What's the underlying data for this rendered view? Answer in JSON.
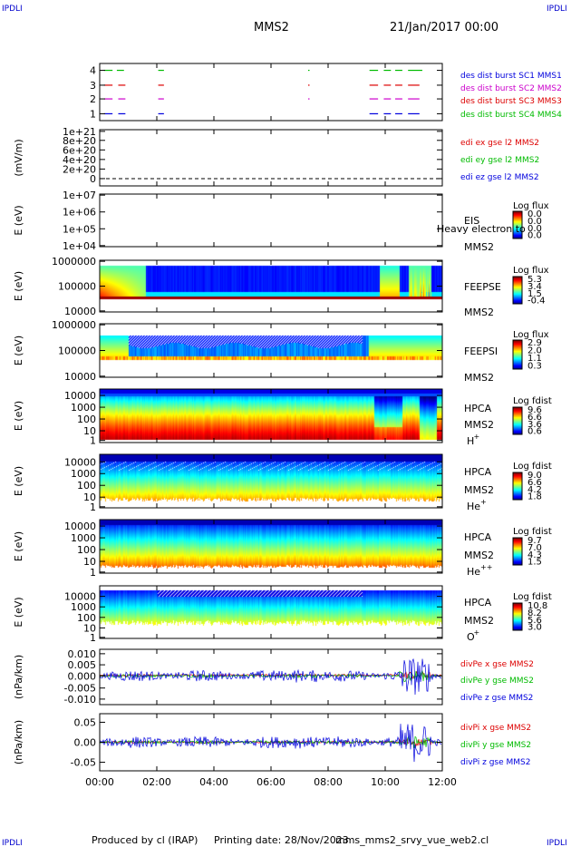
{
  "header": {
    "corner_label": "IPDLI",
    "title": "MMS2",
    "datetime": "21/Jan/2017 00:00"
  },
  "footer": {
    "produced_by": "Produced by cl (IRAP)",
    "printing_date": "Printing date: 28/Nov/2023",
    "source": "mms_mms2_srvy_vue_web2.cl"
  },
  "colors": {
    "blue": "#0000dd",
    "red": "#dd0000",
    "green": "#00bb00",
    "magenta": "#cc00cc"
  },
  "chart_data": [
    {
      "type": "line",
      "panel": "burst",
      "yticks": [
        "1",
        "2",
        "3",
        "4"
      ],
      "legend": [
        {
          "text": "des dist burst SC1 MMS1",
          "color": "#0000dd"
        },
        {
          "text": "des dist burst SC2 MMS2",
          "color": "#cc00cc"
        },
        {
          "text": "des dist burst SC3 MMS3",
          "color": "#dd0000"
        },
        {
          "text": "des dist burst SC4 MMS4",
          "color": "#00bb00"
        }
      ],
      "series": [
        {
          "level": 4,
          "color": "#00bb00",
          "segments": [
            [
              0.15,
              0.45
            ],
            [
              0.6,
              0.85
            ],
            [
              2.05,
              2.25
            ],
            [
              7.3,
              7.35
            ],
            [
              9.45,
              9.75
            ],
            [
              9.95,
              10.2
            ],
            [
              10.35,
              10.6
            ],
            [
              10.8,
              11.3
            ]
          ]
        },
        {
          "level": 3,
          "color": "#dd0000",
          "segments": [
            [
              0.15,
              0.45
            ],
            [
              0.65,
              0.9
            ],
            [
              2.05,
              2.25
            ],
            [
              7.3,
              7.35
            ],
            [
              9.45,
              9.75
            ],
            [
              9.95,
              10.2
            ],
            [
              10.35,
              10.6
            ],
            [
              10.8,
              11.2
            ]
          ]
        },
        {
          "level": 2,
          "color": "#cc00cc",
          "segments": [
            [
              0.15,
              0.45
            ],
            [
              0.65,
              0.9
            ],
            [
              2.05,
              2.25
            ],
            [
              7.3,
              7.35
            ],
            [
              9.45,
              9.75
            ],
            [
              9.95,
              10.2
            ],
            [
              10.35,
              10.6
            ],
            [
              10.8,
              11.2
            ]
          ]
        },
        {
          "level": 1,
          "color": "#0000dd",
          "segments": [
            [
              0.15,
              0.45
            ],
            [
              0.65,
              0.9
            ],
            [
              2.05,
              2.25
            ],
            [
              9.45,
              9.75
            ],
            [
              9.95,
              10.2
            ],
            [
              10.35,
              10.6
            ],
            [
              10.8,
              11.2
            ]
          ]
        }
      ]
    },
    {
      "type": "line",
      "panel": "edi",
      "ylabel": "(mV/m)",
      "yticks": [
        "0",
        "2e+20",
        "4e+20",
        "6e+20",
        "8e+20",
        "1e+21"
      ],
      "legend": [
        {
          "text": "edi ex gse l2 MMS2",
          "color": "#dd0000"
        },
        {
          "text": "edi ey gse l2 MMS2",
          "color": "#00bb00"
        },
        {
          "text": "edi ez gse l2 MMS2",
          "color": "#0000dd"
        }
      ]
    },
    {
      "type": "heatmap",
      "panel": "eis",
      "ylabel": "E (eV)",
      "yticks": [
        "1e+04",
        "1e+05",
        "1e+06",
        "1e+07"
      ],
      "instrument": "EIS",
      "spacecraft": "MMS2",
      "overlay": "Heavy electron to",
      "colorbar": {
        "title": "Log flux",
        "ticks": [
          "0.0",
          "0.0",
          "0.0",
          "0.0"
        ]
      }
    },
    {
      "type": "heatmap",
      "panel": "feepse",
      "ylabel": "E (eV)",
      "yticks": [
        "10000",
        "100000",
        "1000000"
      ],
      "instrument": "FEEPSE",
      "spacecraft": "MMS2",
      "colorbar": {
        "title": "Log flux",
        "ticks": [
          "5.3",
          "3.4",
          "1.5",
          "-0.4"
        ]
      }
    },
    {
      "type": "heatmap",
      "panel": "feepsi",
      "ylabel": "E (eV)",
      "yticks": [
        "10000",
        "100000",
        "1000000"
      ],
      "instrument": "FEEPSI",
      "spacecraft": "MMS2",
      "colorbar": {
        "title": "Log flux",
        "ticks": [
          "2.9",
          "2.0",
          "1.1",
          "0.3"
        ]
      }
    },
    {
      "type": "heatmap",
      "panel": "hpca_h",
      "ylabel": "E (eV)",
      "yticks": [
        "1",
        "10",
        "100",
        "1000",
        "10000"
      ],
      "instrument": "HPCA",
      "spacecraft": "MMS2",
      "species": "H",
      "species_sup": "+",
      "colorbar": {
        "title": "Log fdist",
        "ticks": [
          "9.6",
          "6.6",
          "3.6",
          "0.6"
        ]
      }
    },
    {
      "type": "heatmap",
      "panel": "hpca_he",
      "ylabel": "E (eV)",
      "yticks": [
        "1",
        "10",
        "100",
        "1000",
        "10000"
      ],
      "instrument": "HPCA",
      "spacecraft": "MMS2",
      "species": "He",
      "species_sup": "+",
      "colorbar": {
        "title": "Log fdist",
        "ticks": [
          "9.0",
          "6.6",
          "4.2",
          "1.8"
        ]
      }
    },
    {
      "type": "heatmap",
      "panel": "hpca_hepp",
      "ylabel": "E (eV)",
      "yticks": [
        "1",
        "10",
        "100",
        "1000",
        "10000"
      ],
      "instrument": "HPCA",
      "spacecraft": "MMS2",
      "species": "He",
      "species_sup": "++",
      "colorbar": {
        "title": "Log fdist",
        "ticks": [
          "9.7",
          "7.0",
          "4.3",
          "1.5"
        ]
      }
    },
    {
      "type": "heatmap",
      "panel": "hpca_o",
      "ylabel": "E (eV)",
      "yticks": [
        "1",
        "10",
        "100",
        "1000",
        "10000"
      ],
      "instrument": "HPCA",
      "spacecraft": "MMS2",
      "species": "O",
      "species_sup": "+",
      "colorbar": {
        "title": "Log fdist",
        "ticks": [
          "10.8",
          "8.2",
          "5.6",
          "3.0"
        ]
      }
    },
    {
      "type": "line",
      "panel": "divpe",
      "ylabel": "(nPa/km)",
      "yticks": [
        "-0.010",
        "-0.005",
        "0.000",
        "0.005",
        "0.010"
      ],
      "ylim": [
        -0.013,
        0.012
      ],
      "legend": [
        {
          "text": "divPe x gse MMS2",
          "color": "#dd0000"
        },
        {
          "text": "divPe y gse MMS2",
          "color": "#00bb00"
        },
        {
          "text": "divPe z gse MMS2",
          "color": "#0000dd"
        }
      ]
    },
    {
      "type": "line",
      "panel": "divpi",
      "ylabel": "(nPa/km)",
      "yticks": [
        "-0.05",
        "0.00",
        "0.05"
      ],
      "ylim": [
        -0.075,
        0.075
      ],
      "legend": [
        {
          "text": "divPi x gse MMS2",
          "color": "#dd0000"
        },
        {
          "text": "divPi y gse MMS2",
          "color": "#00bb00"
        },
        {
          "text": "divPi z gse MMS2",
          "color": "#0000dd"
        }
      ]
    }
  ],
  "time_axis": {
    "range_hours": [
      0,
      12
    ],
    "ticks": [
      "00:00",
      "02:00",
      "04:00",
      "06:00",
      "08:00",
      "10:00",
      "12:00"
    ]
  }
}
